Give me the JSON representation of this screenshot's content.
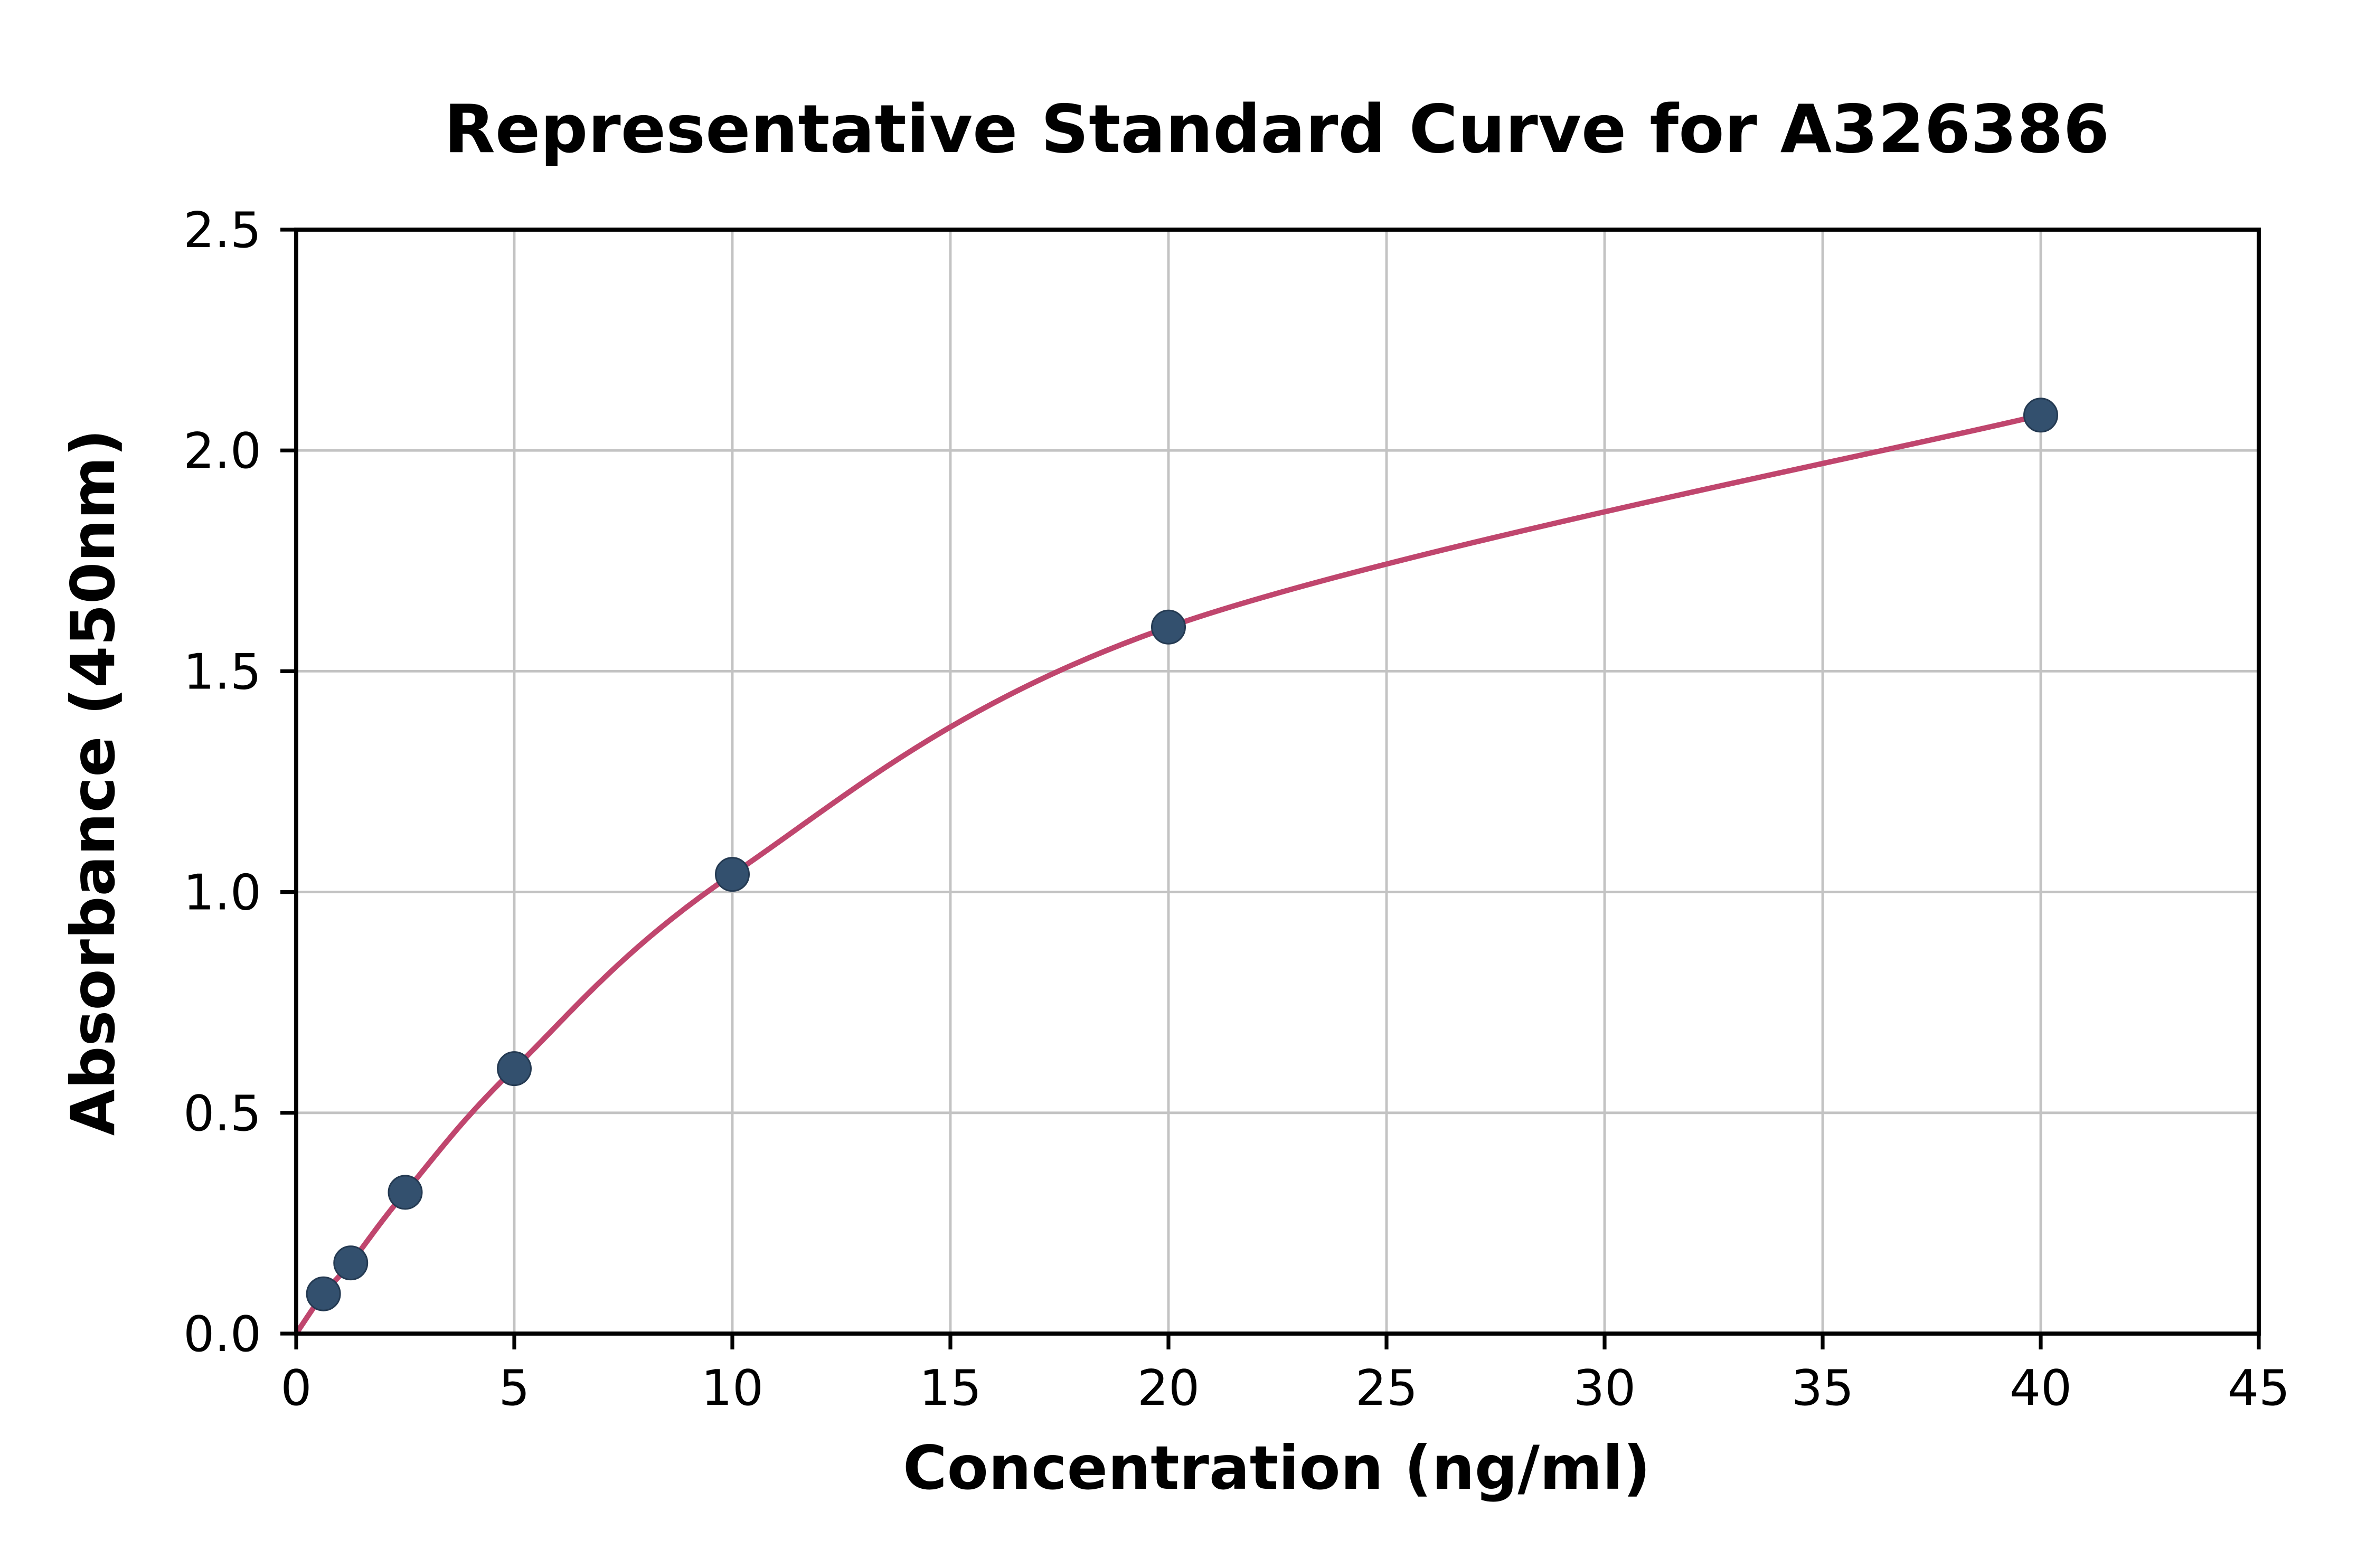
{
  "chart_data": {
    "type": "scatter",
    "title": "Representative Standard Curve for A326386",
    "xlabel": "Concentration (ng/ml)",
    "ylabel": "Absorbance (450nm)",
    "x": [
      0.625,
      1.25,
      2.5,
      5,
      10,
      20,
      40
    ],
    "y": [
      0.09,
      0.16,
      0.32,
      0.6,
      1.04,
      1.6,
      2.08
    ],
    "curve_start": [
      0,
      0
    ],
    "xlim": [
      0,
      45
    ],
    "ylim": [
      0,
      2.5
    ],
    "x_ticks": [
      0,
      5,
      10,
      15,
      20,
      25,
      30,
      35,
      40,
      45
    ],
    "y_ticks": [
      0.0,
      0.5,
      1.0,
      1.5,
      2.0,
      2.5
    ],
    "y_tick_decimals": 1,
    "grid": true,
    "legend": "none",
    "colors": {
      "curve": "#c0466e",
      "marker_fill": "#33506e",
      "marker_edge": "#243a52",
      "grid": "#c3c3c3",
      "axis": "#000000",
      "background": "#ffffff"
    }
  }
}
